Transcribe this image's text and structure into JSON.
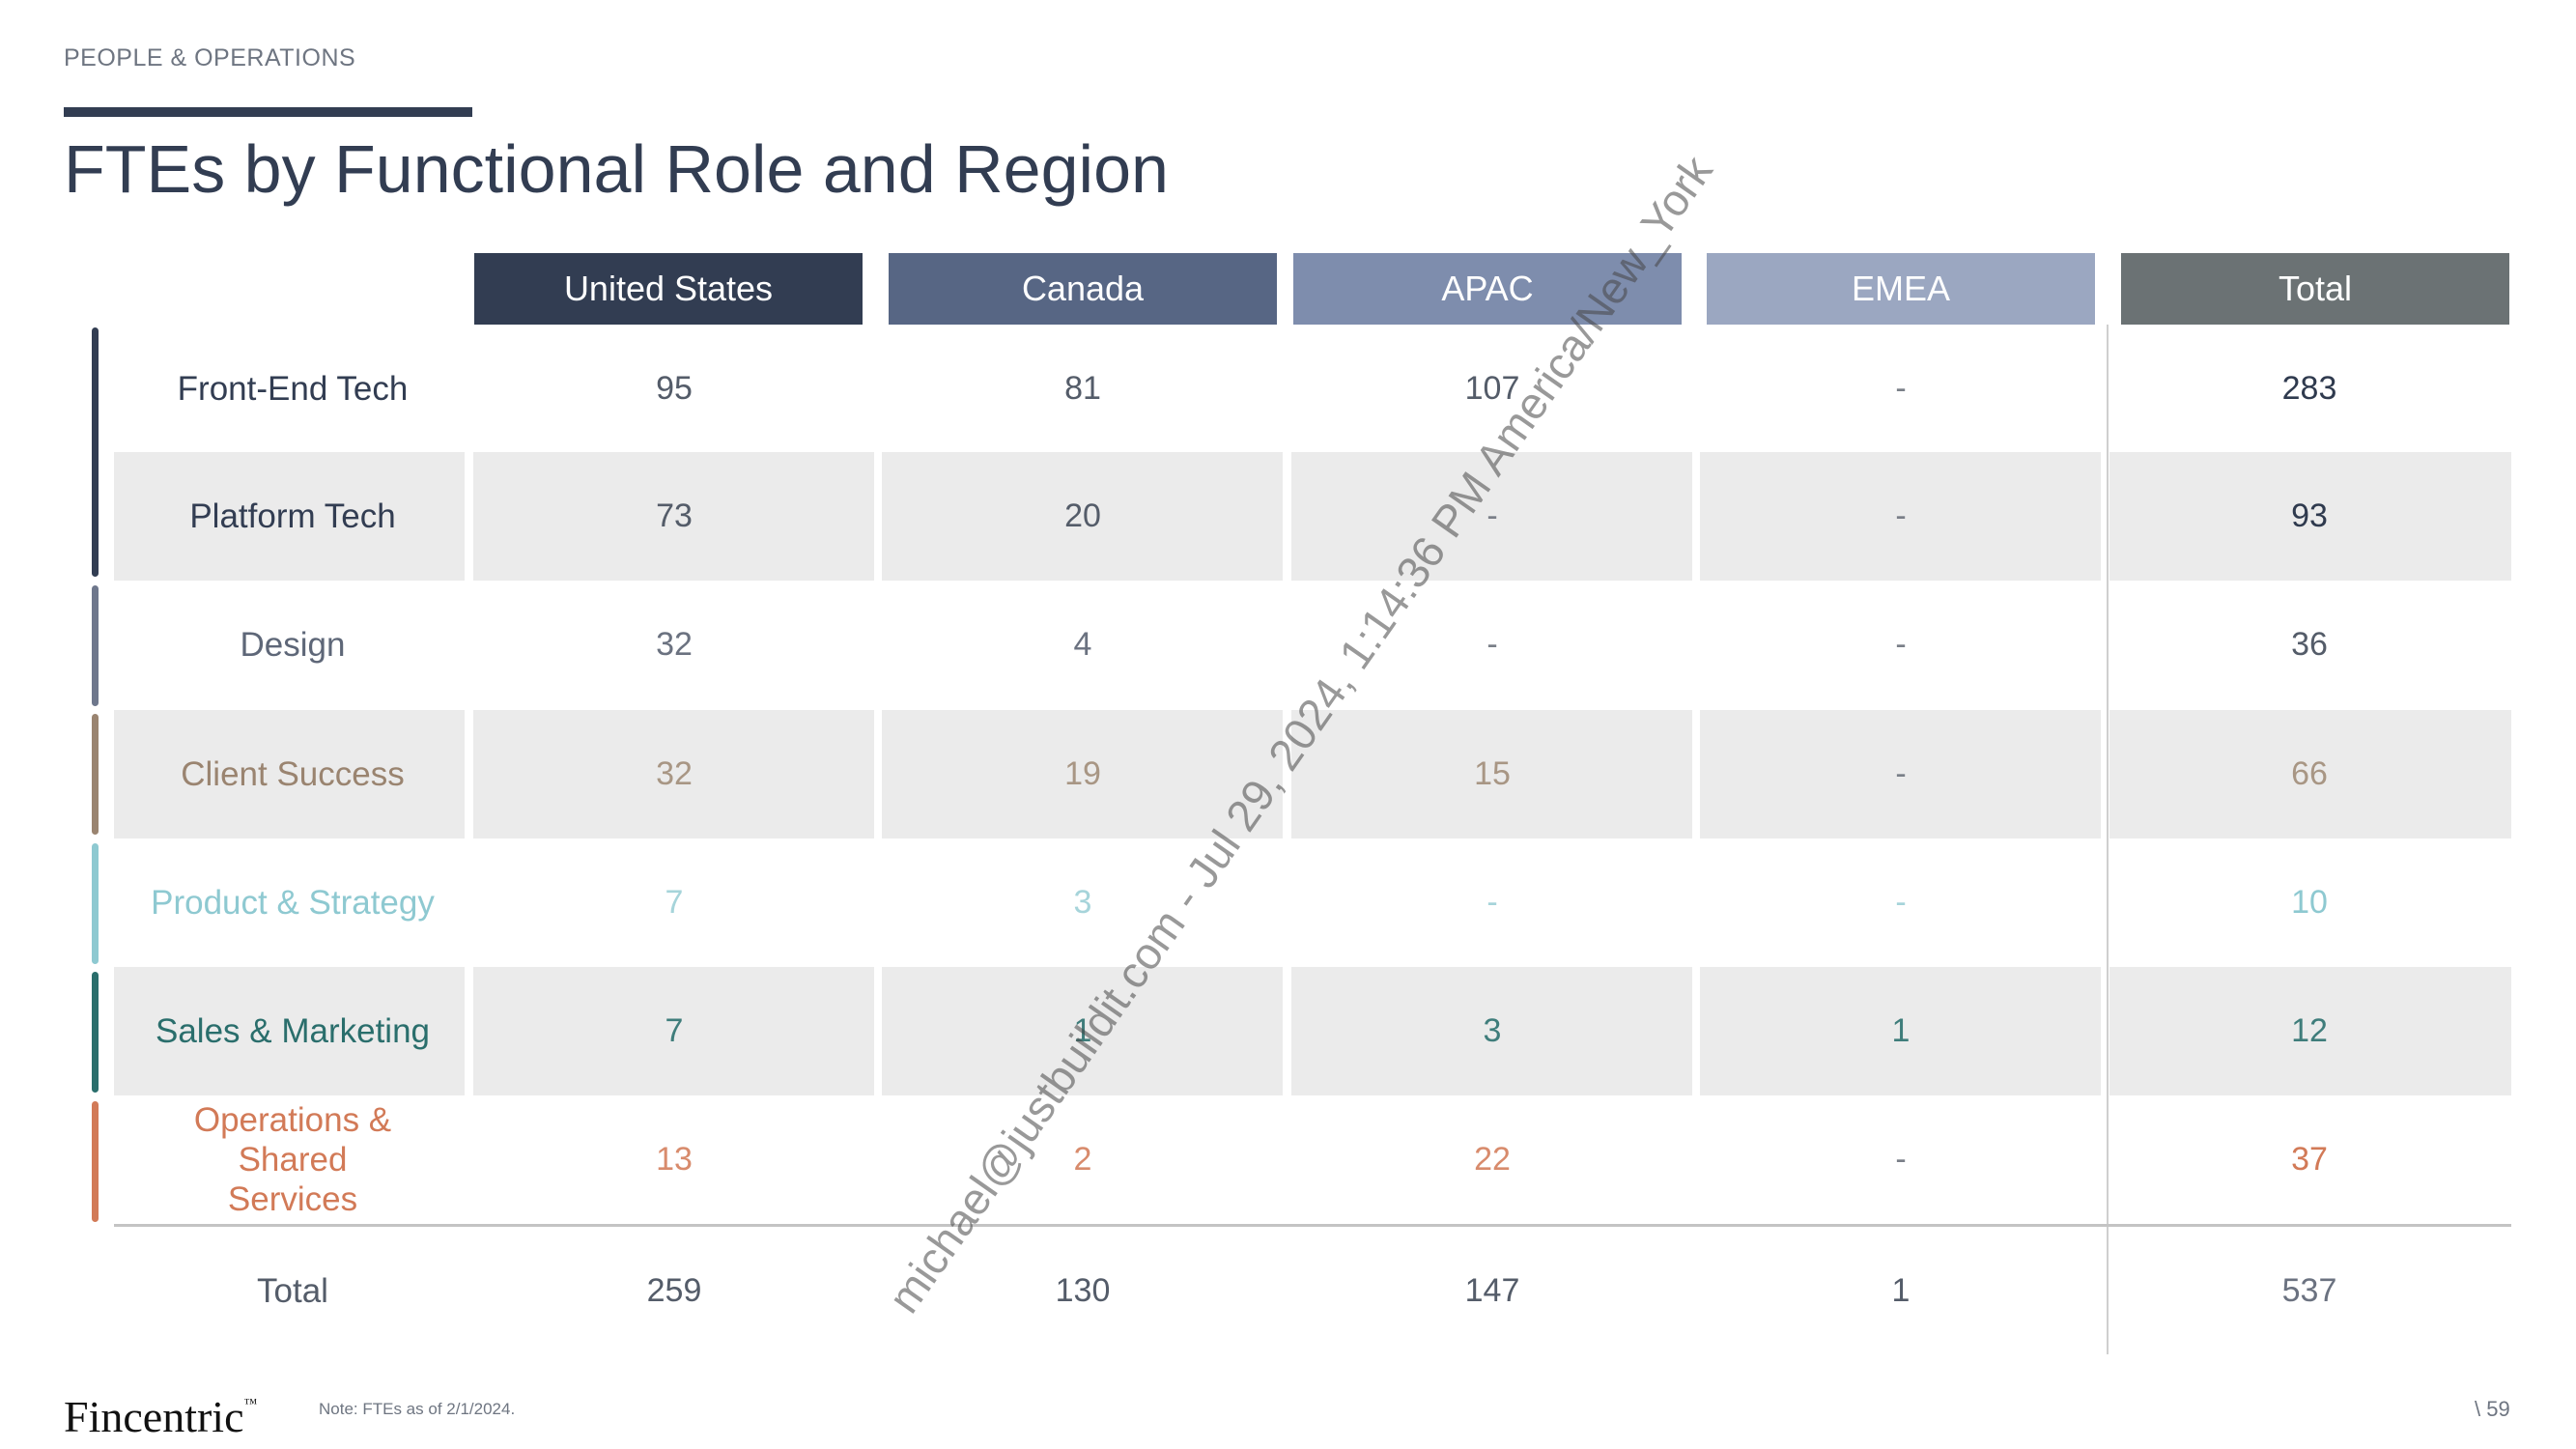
{
  "header": {
    "eyebrow": "PEOPLE & OPERATIONS",
    "title": "FTEs by Functional Role and Region"
  },
  "columns": [
    {
      "label": "United States",
      "color": "#323d52"
    },
    {
      "label": "Canada",
      "color": "#576684"
    },
    {
      "label": "APAC",
      "color": "#7e8dad"
    },
    {
      "label": "EMEA",
      "color": "#9ba7c1"
    },
    {
      "label": "Total",
      "color": "#6b7274"
    }
  ],
  "rows": [
    {
      "label": "Front-End Tech",
      "color": "#323d52",
      "values": [
        "95",
        "81",
        "107",
        "-",
        "283"
      ]
    },
    {
      "label": "Platform Tech",
      "color": "#323d52",
      "values": [
        "73",
        "20",
        "-",
        "-",
        "93"
      ]
    },
    {
      "label": "Design",
      "color": "#6e778c",
      "values": [
        "32",
        "4",
        "-",
        "-",
        "36"
      ]
    },
    {
      "label": "Client Success",
      "color": "#9a8470",
      "values": [
        "32",
        "19",
        "15",
        "-",
        "66"
      ]
    },
    {
      "label": "Product & Strategy",
      "color": "#8ec9d1",
      "values": [
        "7",
        "3",
        "-",
        "-",
        "10"
      ]
    },
    {
      "label": "Sales & Marketing",
      "color": "#2a6e6c",
      "values": [
        "7",
        "1",
        "3",
        "1",
        "12"
      ]
    },
    {
      "label": "Operations & Shared Services",
      "color": "#d27a57",
      "values": [
        "13",
        "2",
        "22",
        "-",
        "37"
      ]
    }
  ],
  "total_row": {
    "label": "Total",
    "values": [
      "259",
      "130",
      "147",
      "1",
      "537"
    ]
  },
  "watermark": "michael@justbuildit.com - Jul 29, 2024, 1:14:36 PM America/New_York",
  "footer": {
    "logo": "Fincentric",
    "trademark": "™",
    "note": "Note: FTEs as of 2/1/2024.",
    "page": "\\ 59"
  }
}
